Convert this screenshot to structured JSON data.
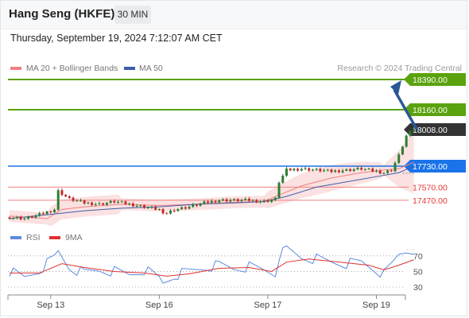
{
  "header": {
    "instrument": "Hang Seng (HKFE)",
    "timeframe": "30 MIN",
    "datetime": "Thursday, September 19, 2024 7:12:07 AM CET"
  },
  "legend": {
    "ma20_label": "MA 20 + Bollinger Bands",
    "ma50_label": "MA 50",
    "credit": "Research © 2024 Trading Central",
    "rsi_label": "RSI",
    "ma9_label": "9MA"
  },
  "colors": {
    "resistance": "#5aa20e",
    "current": "#333333",
    "pivot": "#1a73e8",
    "support": "#f08080",
    "ma20": "#f08080",
    "ma50": "#3b5fa8",
    "arrow": "#2b5797",
    "rsi": "#5b8ae0",
    "rsi_ma": "#e03030",
    "candle_up": "#2e7d32",
    "candle_down": "#c62828"
  },
  "chart_data": [
    {
      "type": "candlestick",
      "ylim": [
        17300,
        18420
      ],
      "levels": [
        {
          "value": 18390.0,
          "label": "18390.00",
          "kind": "resistance"
        },
        {
          "value": 18160.0,
          "label": "18160.00",
          "kind": "resistance"
        },
        {
          "value": 18008.0,
          "label": "18008.00",
          "kind": "current"
        },
        {
          "value": 17730.0,
          "label": "17730.00",
          "kind": "pivot"
        },
        {
          "value": 17570.0,
          "label": "17570.00",
          "kind": "support"
        },
        {
          "value": 17470.0,
          "label": "17470.00",
          "kind": "support"
        }
      ],
      "x_ticks": [
        "Sep 13",
        "Sep 16",
        "Sep 17",
        "Sep 19"
      ],
      "x_tick_index": [
        11,
        40,
        69,
        98
      ],
      "x_range": [
        0,
        110
      ],
      "series_points": {
        "close": [
          [
            0,
            17340
          ],
          [
            4,
            17330
          ],
          [
            8,
            17360
          ],
          [
            12,
            17400
          ],
          [
            13,
            17540
          ],
          [
            16,
            17480
          ],
          [
            20,
            17450
          ],
          [
            24,
            17440
          ],
          [
            28,
            17460
          ],
          [
            32,
            17440
          ],
          [
            36,
            17420
          ],
          [
            40,
            17400
          ],
          [
            41,
            17360
          ],
          [
            44,
            17400
          ],
          [
            48,
            17420
          ],
          [
            52,
            17450
          ],
          [
            56,
            17470
          ],
          [
            60,
            17470
          ],
          [
            64,
            17470
          ],
          [
            68,
            17460
          ],
          [
            71,
            17480
          ],
          [
            72,
            17610
          ],
          [
            74,
            17700
          ],
          [
            78,
            17710
          ],
          [
            82,
            17700
          ],
          [
            86,
            17690
          ],
          [
            90,
            17700
          ],
          [
            94,
            17710
          ],
          [
            98,
            17690
          ],
          [
            100,
            17680
          ],
          [
            102,
            17700
          ],
          [
            104,
            17810
          ],
          [
            106,
            17960
          ],
          [
            108,
            18008
          ]
        ],
        "ma20": [
          [
            0,
            17350
          ],
          [
            10,
            17330
          ],
          [
            14,
            17400
          ],
          [
            20,
            17420
          ],
          [
            30,
            17440
          ],
          [
            40,
            17430
          ],
          [
            50,
            17440
          ],
          [
            60,
            17455
          ],
          [
            68,
            17460
          ],
          [
            72,
            17510
          ],
          [
            78,
            17580
          ],
          [
            86,
            17640
          ],
          [
            94,
            17680
          ],
          [
            100,
            17700
          ],
          [
            104,
            17710
          ],
          [
            108,
            17760
          ]
        ],
        "ma50": [
          [
            0,
            17330
          ],
          [
            10,
            17360
          ],
          [
            20,
            17390
          ],
          [
            30,
            17410
          ],
          [
            40,
            17420
          ],
          [
            50,
            17440
          ],
          [
            60,
            17450
          ],
          [
            68,
            17460
          ],
          [
            74,
            17500
          ],
          [
            82,
            17570
          ],
          [
            90,
            17610
          ],
          [
            98,
            17650
          ],
          [
            104,
            17680
          ],
          [
            108,
            17730
          ]
        ]
      },
      "projection": {
        "from": 18008,
        "to": 18390
      }
    },
    {
      "type": "line",
      "title": "RSI",
      "ylim": [
        25,
        80
      ],
      "y_ticks": [
        70,
        50,
        30
      ],
      "series": [
        {
          "name": "RSI",
          "points": [
            [
              0,
              50
            ],
            [
              4,
              42
            ],
            [
              8,
              52
            ],
            [
              12,
              68
            ],
            [
              13,
              75
            ],
            [
              16,
              55
            ],
            [
              20,
              48
            ],
            [
              24,
              52
            ],
            [
              28,
              50
            ],
            [
              32,
              46
            ],
            [
              36,
              52
            ],
            [
              40,
              42
            ],
            [
              41,
              35
            ],
            [
              44,
              45
            ],
            [
              48,
              50
            ],
            [
              52,
              55
            ],
            [
              56,
              58
            ],
            [
              60,
              54
            ],
            [
              64,
              56
            ],
            [
              68,
              52
            ],
            [
              71,
              48
            ],
            [
              72,
              70
            ],
            [
              74,
              78
            ],
            [
              78,
              68
            ],
            [
              82,
              66
            ],
            [
              86,
              62
            ],
            [
              90,
              60
            ],
            [
              94,
              62
            ],
            [
              98,
              52
            ],
            [
              100,
              46
            ],
            [
              102,
              58
            ],
            [
              104,
              72
            ],
            [
              106,
              77
            ],
            [
              108,
              78
            ]
          ]
        },
        {
          "name": "9MA",
          "points": [
            [
              0,
              48
            ],
            [
              8,
              48
            ],
            [
              14,
              60
            ],
            [
              20,
              55
            ],
            [
              28,
              50
            ],
            [
              36,
              48
            ],
            [
              42,
              44
            ],
            [
              48,
              47
            ],
            [
              56,
              54
            ],
            [
              64,
              55
            ],
            [
              70,
              50
            ],
            [
              74,
              62
            ],
            [
              80,
              66
            ],
            [
              88,
              62
            ],
            [
              96,
              58
            ],
            [
              100,
              52
            ],
            [
              104,
              58
            ],
            [
              108,
              65
            ]
          ]
        }
      ]
    }
  ]
}
